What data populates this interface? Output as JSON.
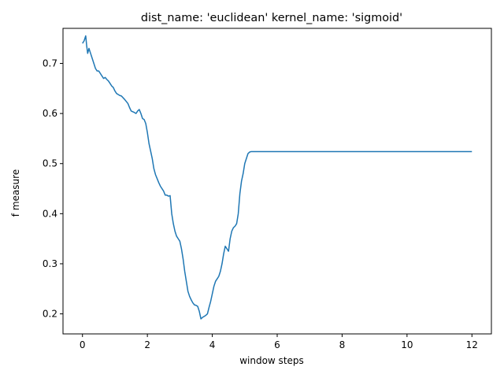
{
  "chart_data": {
    "type": "line",
    "title": "dist_name: 'euclidean' kernel_name: 'sigmoid'",
    "xlabel": "window steps",
    "ylabel": "f measure",
    "xlim": [
      -0.6,
      12.6
    ],
    "ylim": [
      0.16,
      0.77
    ],
    "xticks": [
      0,
      2,
      4,
      6,
      8,
      10,
      12
    ],
    "yticks": [
      0.2,
      0.3,
      0.4,
      0.5,
      0.6,
      0.7
    ],
    "grid": false,
    "legend": "none",
    "series": [
      {
        "color": "#1f77b4",
        "x": [
          0.0,
          0.05,
          0.1,
          0.13,
          0.16,
          0.2,
          0.25,
          0.3,
          0.35,
          0.4,
          0.45,
          0.5,
          0.55,
          0.6,
          0.65,
          0.7,
          0.75,
          0.8,
          0.85,
          0.9,
          0.95,
          1.0,
          1.05,
          1.1,
          1.15,
          1.2,
          1.3,
          1.4,
          1.45,
          1.5,
          1.6,
          1.65,
          1.7,
          1.75,
          1.8,
          1.85,
          1.9,
          1.95,
          2.0,
          2.05,
          2.1,
          2.15,
          2.2,
          2.25,
          2.3,
          2.35,
          2.4,
          2.5,
          2.55,
          2.6,
          2.65,
          2.7,
          2.75,
          2.8,
          2.85,
          2.9,
          2.95,
          3.0,
          3.05,
          3.1,
          3.15,
          3.2,
          3.25,
          3.3,
          3.35,
          3.4,
          3.45,
          3.5,
          3.55,
          3.6,
          3.65,
          3.7,
          3.75,
          3.8,
          3.85,
          3.9,
          3.95,
          4.0,
          4.05,
          4.1,
          4.15,
          4.2,
          4.25,
          4.3,
          4.35,
          4.4,
          4.45,
          4.5,
          4.55,
          4.6,
          4.65,
          4.7,
          4.75,
          4.8,
          4.85,
          4.9,
          4.95,
          5.0,
          5.05,
          5.1,
          5.15,
          5.2,
          6.0,
          8.0,
          10.0,
          12.0
        ],
        "y": [
          0.74,
          0.745,
          0.755,
          0.735,
          0.72,
          0.73,
          0.72,
          0.71,
          0.7,
          0.69,
          0.685,
          0.685,
          0.68,
          0.675,
          0.67,
          0.672,
          0.668,
          0.665,
          0.66,
          0.655,
          0.652,
          0.645,
          0.64,
          0.638,
          0.636,
          0.635,
          0.628,
          0.62,
          0.612,
          0.605,
          0.602,
          0.6,
          0.605,
          0.608,
          0.6,
          0.59,
          0.588,
          0.58,
          0.562,
          0.54,
          0.525,
          0.51,
          0.49,
          0.478,
          0.47,
          0.462,
          0.455,
          0.445,
          0.437,
          0.437,
          0.435,
          0.436,
          0.4,
          0.38,
          0.365,
          0.355,
          0.35,
          0.345,
          0.33,
          0.31,
          0.285,
          0.265,
          0.245,
          0.235,
          0.228,
          0.222,
          0.218,
          0.217,
          0.215,
          0.205,
          0.19,
          0.193,
          0.195,
          0.197,
          0.2,
          0.213,
          0.225,
          0.24,
          0.255,
          0.265,
          0.27,
          0.275,
          0.285,
          0.3,
          0.32,
          0.335,
          0.33,
          0.325,
          0.35,
          0.365,
          0.372,
          0.375,
          0.38,
          0.4,
          0.44,
          0.465,
          0.48,
          0.5,
          0.51,
          0.52,
          0.523,
          0.524,
          0.524,
          0.524,
          0.524,
          0.524
        ]
      }
    ]
  }
}
